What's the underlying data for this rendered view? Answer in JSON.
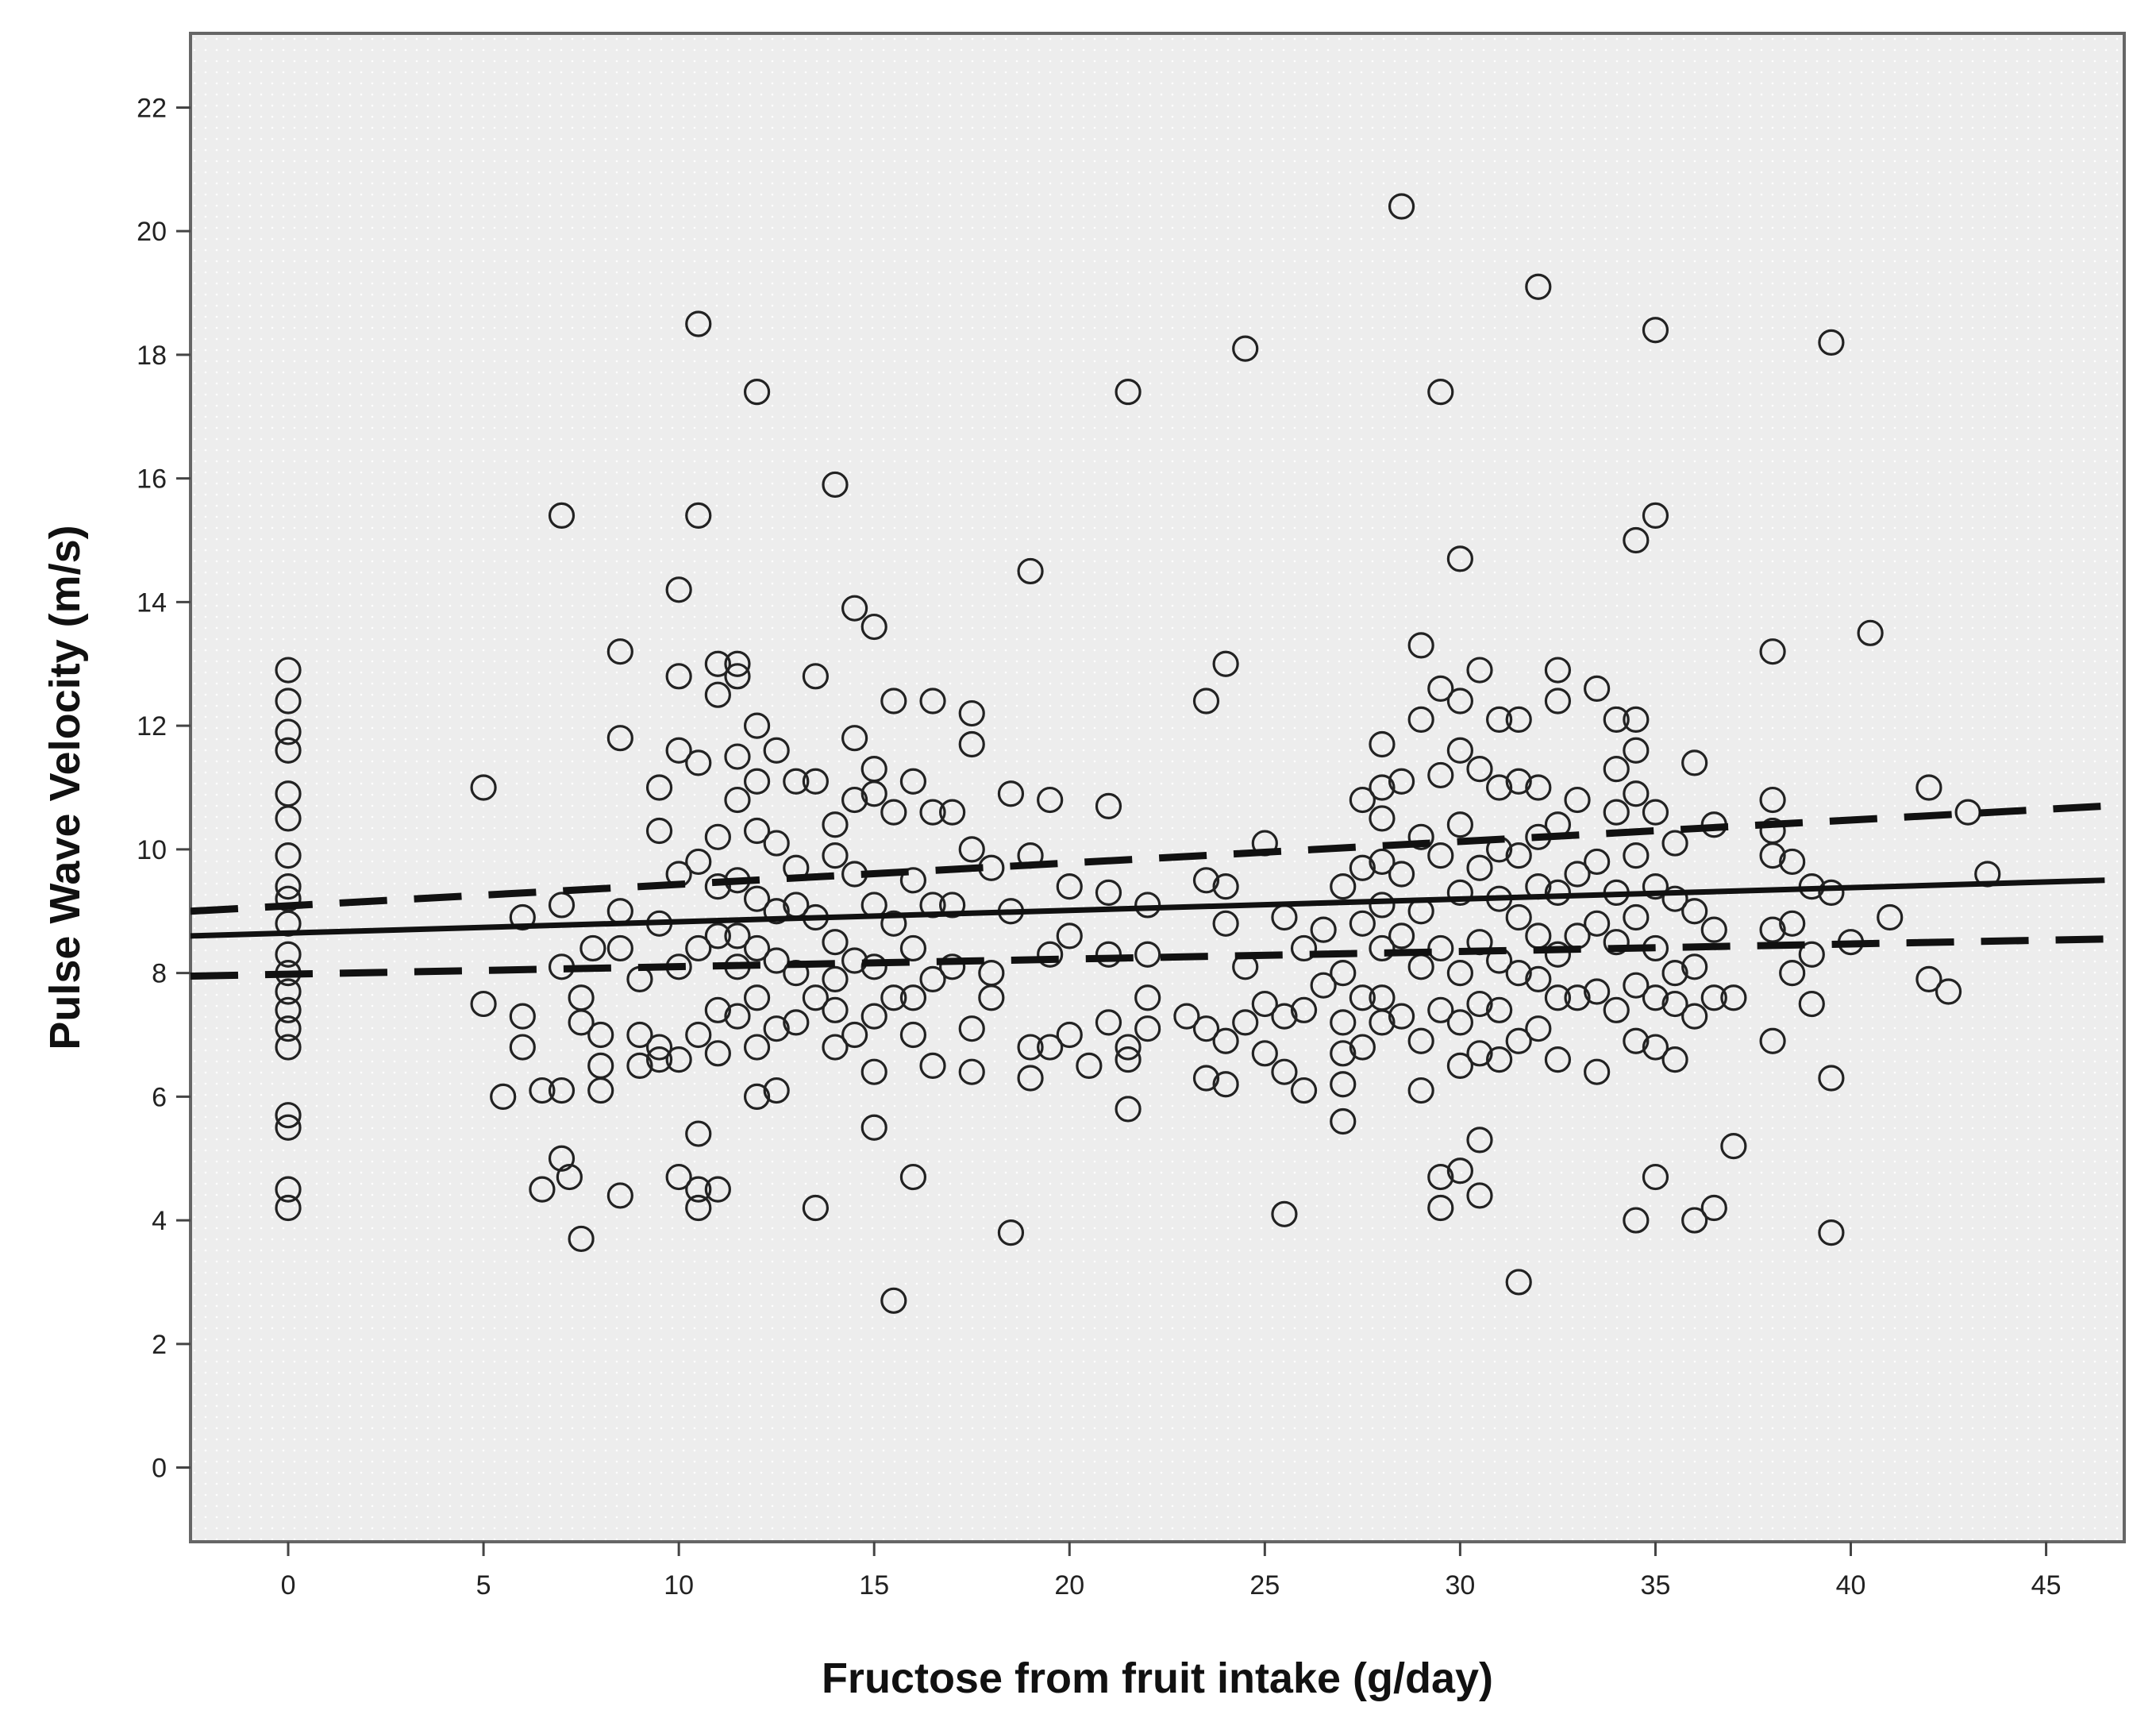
{
  "chart_data": {
    "type": "scatter",
    "title": "",
    "xlabel": "Fructose from fruit intake (g/day)",
    "ylabel": "Pulse Wave Velocity (m/s)",
    "xlim": [
      -2.5,
      47
    ],
    "ylim": [
      -1.2,
      23.2
    ],
    "xticks": [
      0,
      5,
      10,
      15,
      20,
      25,
      30,
      35,
      40,
      45
    ],
    "yticks": [
      0,
      2,
      4,
      6,
      8,
      10,
      12,
      14,
      16,
      18,
      20,
      22
    ],
    "grid": false,
    "legend": "none",
    "marker": "open-circle",
    "colors": {
      "plot_background": "#ededed",
      "frame": "#666666",
      "points": "#222222",
      "lines": "#111111"
    },
    "fit_line": {
      "style": "solid",
      "x": [
        -2.5,
        46.5
      ],
      "y": [
        8.6,
        9.5
      ]
    },
    "ci_upper": {
      "style": "dashed",
      "x": [
        -2.5,
        46.5
      ],
      "y": [
        9.0,
        10.7
      ]
    },
    "ci_lower": {
      "style": "dashed",
      "x": [
        -2.5,
        46.5
      ],
      "y": [
        7.95,
        8.55
      ]
    },
    "points": [
      [
        0,
        12.9
      ],
      [
        0,
        12.4
      ],
      [
        0,
        11.9
      ],
      [
        0,
        11.6
      ],
      [
        0,
        10.9
      ],
      [
        0,
        10.5
      ],
      [
        0,
        9.9
      ],
      [
        0,
        9.4
      ],
      [
        0,
        9.2
      ],
      [
        0,
        8.8
      ],
      [
        0,
        8.3
      ],
      [
        0,
        8.0
      ],
      [
        0,
        7.7
      ],
      [
        0,
        7.4
      ],
      [
        0,
        7.1
      ],
      [
        0,
        6.8
      ],
      [
        0,
        5.7
      ],
      [
        0,
        5.5
      ],
      [
        0,
        4.5
      ],
      [
        0,
        4.2
      ],
      [
        5,
        11.0
      ],
      [
        5,
        7.5
      ],
      [
        5.5,
        6.0
      ],
      [
        6,
        8.9
      ],
      [
        6,
        7.3
      ],
      [
        6,
        6.8
      ],
      [
        6.5,
        6.1
      ],
      [
        6.5,
        4.5
      ],
      [
        7,
        15.4
      ],
      [
        7,
        9.1
      ],
      [
        7,
        8.1
      ],
      [
        7,
        6.1
      ],
      [
        7,
        5.0
      ],
      [
        7.2,
        4.7
      ],
      [
        7.5,
        3.7
      ],
      [
        7.5,
        7.6
      ],
      [
        7.5,
        7.2
      ],
      [
        7.8,
        8.4
      ],
      [
        8,
        7.0
      ],
      [
        8,
        6.5
      ],
      [
        8,
        6.1
      ],
      [
        8.5,
        13.2
      ],
      [
        8.5,
        11.8
      ],
      [
        8.5,
        9.0
      ],
      [
        8.5,
        8.4
      ],
      [
        8.5,
        4.4
      ],
      [
        9,
        7.9
      ],
      [
        9,
        7.0
      ],
      [
        9,
        6.5
      ],
      [
        9.5,
        11.0
      ],
      [
        9.5,
        10.3
      ],
      [
        9.5,
        8.8
      ],
      [
        9.5,
        6.8
      ],
      [
        9.5,
        6.6
      ],
      [
        10,
        14.2
      ],
      [
        10,
        12.8
      ],
      [
        10,
        11.6
      ],
      [
        10,
        9.6
      ],
      [
        10,
        8.1
      ],
      [
        10,
        6.6
      ],
      [
        10,
        4.7
      ],
      [
        10.5,
        18.5
      ],
      [
        10.5,
        15.4
      ],
      [
        10.5,
        11.4
      ],
      [
        10.5,
        9.8
      ],
      [
        10.5,
        8.4
      ],
      [
        10.5,
        7.0
      ],
      [
        10.5,
        5.4
      ],
      [
        10.5,
        4.5
      ],
      [
        10.5,
        4.2
      ],
      [
        11,
        13.0
      ],
      [
        11,
        12.5
      ],
      [
        11,
        10.2
      ],
      [
        11,
        9.4
      ],
      [
        11,
        8.6
      ],
      [
        11,
        7.4
      ],
      [
        11,
        6.7
      ],
      [
        11,
        4.5
      ],
      [
        11.5,
        13.0
      ],
      [
        11.5,
        12.8
      ],
      [
        11.5,
        11.5
      ],
      [
        11.5,
        10.8
      ],
      [
        11.5,
        9.5
      ],
      [
        11.5,
        8.6
      ],
      [
        11.5,
        8.1
      ],
      [
        11.5,
        7.3
      ],
      [
        12,
        17.4
      ],
      [
        12,
        12.0
      ],
      [
        12,
        11.1
      ],
      [
        12,
        10.3
      ],
      [
        12,
        9.2
      ],
      [
        12,
        8.4
      ],
      [
        12,
        7.6
      ],
      [
        12,
        6.8
      ],
      [
        12,
        6.0
      ],
      [
        12.5,
        11.6
      ],
      [
        12.5,
        10.1
      ],
      [
        12.5,
        9.0
      ],
      [
        12.5,
        8.2
      ],
      [
        12.5,
        7.1
      ],
      [
        12.5,
        6.1
      ],
      [
        13,
        11.1
      ],
      [
        13,
        9.7
      ],
      [
        13,
        9.1
      ],
      [
        13,
        8.0
      ],
      [
        13,
        7.2
      ],
      [
        13.5,
        12.8
      ],
      [
        13.5,
        11.1
      ],
      [
        13.5,
        8.9
      ],
      [
        13.5,
        7.6
      ],
      [
        13.5,
        4.2
      ],
      [
        14,
        15.9
      ],
      [
        14,
        10.4
      ],
      [
        14,
        9.9
      ],
      [
        14,
        8.5
      ],
      [
        14,
        7.9
      ],
      [
        14,
        7.4
      ],
      [
        14,
        6.8
      ],
      [
        14.5,
        13.9
      ],
      [
        14.5,
        11.8
      ],
      [
        14.5,
        10.8
      ],
      [
        14.5,
        9.6
      ],
      [
        14.5,
        8.2
      ],
      [
        14.5,
        7.0
      ],
      [
        15,
        13.6
      ],
      [
        15,
        11.3
      ],
      [
        15,
        10.9
      ],
      [
        15,
        9.1
      ],
      [
        15,
        8.1
      ],
      [
        15,
        7.3
      ],
      [
        15,
        6.4
      ],
      [
        15,
        5.5
      ],
      [
        15.5,
        12.4
      ],
      [
        15.5,
        10.6
      ],
      [
        15.5,
        8.8
      ],
      [
        15.5,
        7.6
      ],
      [
        15.5,
        2.7
      ],
      [
        16,
        11.1
      ],
      [
        16,
        9.5
      ],
      [
        16,
        8.4
      ],
      [
        16,
        7.6
      ],
      [
        16,
        7.0
      ],
      [
        16,
        4.7
      ],
      [
        16.5,
        12.4
      ],
      [
        16.5,
        10.6
      ],
      [
        16.5,
        9.1
      ],
      [
        16.5,
        7.9
      ],
      [
        16.5,
        6.5
      ],
      [
        17,
        10.6
      ],
      [
        17,
        9.1
      ],
      [
        17,
        8.1
      ],
      [
        17.5,
        12.2
      ],
      [
        17.5,
        11.7
      ],
      [
        17.5,
        10.0
      ],
      [
        17.5,
        7.1
      ],
      [
        17.5,
        6.4
      ],
      [
        18,
        9.7
      ],
      [
        18,
        8.0
      ],
      [
        18,
        7.6
      ],
      [
        18.5,
        10.9
      ],
      [
        18.5,
        9.0
      ],
      [
        18.5,
        3.8
      ],
      [
        19,
        14.5
      ],
      [
        19,
        9.9
      ],
      [
        19,
        6.8
      ],
      [
        19,
        6.3
      ],
      [
        19.5,
        10.8
      ],
      [
        19.5,
        8.3
      ],
      [
        19.5,
        6.8
      ],
      [
        20,
        9.4
      ],
      [
        20,
        8.6
      ],
      [
        20,
        7.0
      ],
      [
        20.5,
        6.5
      ],
      [
        21,
        10.7
      ],
      [
        21,
        9.3
      ],
      [
        21,
        8.3
      ],
      [
        21,
        7.2
      ],
      [
        21.5,
        17.4
      ],
      [
        21.5,
        6.8
      ],
      [
        21.5,
        6.6
      ],
      [
        21.5,
        5.8
      ],
      [
        22,
        9.1
      ],
      [
        22,
        8.3
      ],
      [
        22,
        7.6
      ],
      [
        22,
        7.1
      ],
      [
        23,
        7.3
      ],
      [
        23.5,
        12.4
      ],
      [
        23.5,
        9.5
      ],
      [
        23.5,
        7.1
      ],
      [
        23.5,
        6.3
      ],
      [
        24,
        13.0
      ],
      [
        24,
        9.4
      ],
      [
        24,
        8.8
      ],
      [
        24,
        6.9
      ],
      [
        24,
        6.2
      ],
      [
        24.5,
        18.1
      ],
      [
        24.5,
        8.1
      ],
      [
        24.5,
        7.2
      ],
      [
        25,
        10.1
      ],
      [
        25,
        7.5
      ],
      [
        25,
        6.7
      ],
      [
        25.5,
        8.9
      ],
      [
        25.5,
        7.3
      ],
      [
        25.5,
        6.4
      ],
      [
        25.5,
        4.1
      ],
      [
        26,
        8.4
      ],
      [
        26,
        7.4
      ],
      [
        26,
        6.1
      ],
      [
        26.5,
        8.7
      ],
      [
        26.5,
        7.8
      ],
      [
        27,
        9.4
      ],
      [
        27,
        8.0
      ],
      [
        27,
        7.2
      ],
      [
        27,
        6.7
      ],
      [
        27,
        6.2
      ],
      [
        27,
        5.6
      ],
      [
        27.5,
        10.8
      ],
      [
        27.5,
        9.7
      ],
      [
        27.5,
        8.8
      ],
      [
        27.5,
        7.6
      ],
      [
        27.5,
        6.8
      ],
      [
        28,
        11.7
      ],
      [
        28,
        11.0
      ],
      [
        28,
        10.5
      ],
      [
        28,
        9.8
      ],
      [
        28,
        9.1
      ],
      [
        28,
        8.4
      ],
      [
        28,
        7.6
      ],
      [
        28,
        7.2
      ],
      [
        28.5,
        20.4
      ],
      [
        28.5,
        11.1
      ],
      [
        28.5,
        9.6
      ],
      [
        28.5,
        8.6
      ],
      [
        28.5,
        7.3
      ],
      [
        29,
        13.3
      ],
      [
        29,
        12.1
      ],
      [
        29,
        10.2
      ],
      [
        29,
        9.0
      ],
      [
        29,
        8.1
      ],
      [
        29,
        6.9
      ],
      [
        29,
        6.1
      ],
      [
        29.5,
        17.4
      ],
      [
        29.5,
        12.6
      ],
      [
        29.5,
        11.2
      ],
      [
        29.5,
        9.9
      ],
      [
        29.5,
        8.4
      ],
      [
        29.5,
        7.4
      ],
      [
        29.5,
        4.7
      ],
      [
        29.5,
        4.2
      ],
      [
        30,
        14.7
      ],
      [
        30,
        12.4
      ],
      [
        30,
        11.6
      ],
      [
        30,
        10.4
      ],
      [
        30,
        9.3
      ],
      [
        30,
        8.0
      ],
      [
        30,
        7.2
      ],
      [
        30,
        6.5
      ],
      [
        30,
        4.8
      ],
      [
        30.5,
        12.9
      ],
      [
        30.5,
        11.3
      ],
      [
        30.5,
        9.7
      ],
      [
        30.5,
        8.5
      ],
      [
        30.5,
        7.5
      ],
      [
        30.5,
        6.7
      ],
      [
        30.5,
        5.3
      ],
      [
        30.5,
        4.4
      ],
      [
        31,
        12.1
      ],
      [
        31,
        11.0
      ],
      [
        31,
        10.0
      ],
      [
        31,
        9.2
      ],
      [
        31,
        8.2
      ],
      [
        31,
        7.4
      ],
      [
        31,
        6.6
      ],
      [
        31.5,
        12.1
      ],
      [
        31.5,
        11.1
      ],
      [
        31.5,
        9.9
      ],
      [
        31.5,
        8.9
      ],
      [
        31.5,
        8.0
      ],
      [
        31.5,
        6.9
      ],
      [
        31.5,
        3.0
      ],
      [
        32,
        19.1
      ],
      [
        32,
        11.0
      ],
      [
        32,
        10.2
      ],
      [
        32,
        9.4
      ],
      [
        32,
        8.6
      ],
      [
        32,
        7.9
      ],
      [
        32,
        7.1
      ],
      [
        32.5,
        12.9
      ],
      [
        32.5,
        12.4
      ],
      [
        32.5,
        10.4
      ],
      [
        32.5,
        9.3
      ],
      [
        32.5,
        8.3
      ],
      [
        32.5,
        7.6
      ],
      [
        32.5,
        6.6
      ],
      [
        33,
        10.8
      ],
      [
        33,
        9.6
      ],
      [
        33,
        8.6
      ],
      [
        33,
        7.6
      ],
      [
        33.5,
        12.6
      ],
      [
        33.5,
        9.8
      ],
      [
        33.5,
        8.8
      ],
      [
        33.5,
        7.7
      ],
      [
        33.5,
        6.4
      ],
      [
        34,
        12.1
      ],
      [
        34,
        11.3
      ],
      [
        34,
        10.6
      ],
      [
        34,
        9.3
      ],
      [
        34,
        8.5
      ],
      [
        34,
        7.4
      ],
      [
        34.5,
        15.0
      ],
      [
        34.5,
        12.1
      ],
      [
        34.5,
        11.6
      ],
      [
        34.5,
        10.9
      ],
      [
        34.5,
        9.9
      ],
      [
        34.5,
        8.9
      ],
      [
        34.5,
        7.8
      ],
      [
        34.5,
        6.9
      ],
      [
        34.5,
        4.0
      ],
      [
        35,
        18.4
      ],
      [
        35,
        15.4
      ],
      [
        35,
        10.6
      ],
      [
        35,
        9.4
      ],
      [
        35,
        8.4
      ],
      [
        35,
        7.6
      ],
      [
        35,
        6.8
      ],
      [
        35,
        4.7
      ],
      [
        35.5,
        10.1
      ],
      [
        35.5,
        9.2
      ],
      [
        35.5,
        8.0
      ],
      [
        35.5,
        7.5
      ],
      [
        35.5,
        6.6
      ],
      [
        36,
        11.4
      ],
      [
        36,
        9.0
      ],
      [
        36,
        8.1
      ],
      [
        36,
        7.3
      ],
      [
        36,
        4.0
      ],
      [
        36.5,
        10.4
      ],
      [
        36.5,
        8.7
      ],
      [
        36.5,
        7.6
      ],
      [
        36.5,
        4.2
      ],
      [
        37,
        7.6
      ],
      [
        37,
        5.2
      ],
      [
        38,
        13.2
      ],
      [
        38,
        10.8
      ],
      [
        38,
        10.3
      ],
      [
        38,
        9.9
      ],
      [
        38,
        8.7
      ],
      [
        38,
        6.9
      ],
      [
        38.5,
        9.8
      ],
      [
        38.5,
        8.8
      ],
      [
        38.5,
        8.0
      ],
      [
        39,
        9.4
      ],
      [
        39,
        8.3
      ],
      [
        39,
        7.5
      ],
      [
        39.5,
        18.2
      ],
      [
        39.5,
        9.3
      ],
      [
        39.5,
        6.3
      ],
      [
        39.5,
        3.8
      ],
      [
        40,
        8.5
      ],
      [
        40.5,
        13.5
      ],
      [
        41,
        8.9
      ],
      [
        42,
        11.0
      ],
      [
        42,
        7.9
      ],
      [
        42.5,
        7.7
      ],
      [
        43,
        10.6
      ],
      [
        43.5,
        9.6
      ]
    ]
  }
}
